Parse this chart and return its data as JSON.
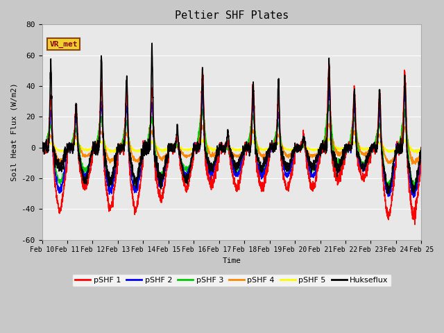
{
  "title": "Peltier SHF Plates",
  "xlabel": "Time",
  "ylabel": "Soil Heat Flux (W/m2)",
  "ylim": [
    -60,
    80
  ],
  "xlim": [
    0,
    15
  ],
  "fig_bg_color": "#c8c8c8",
  "plot_bg_color": "#e8e8e8",
  "series": {
    "pSHF 1": {
      "color": "#ff0000",
      "lw": 1.2
    },
    "pSHF 2": {
      "color": "#0000ff",
      "lw": 1.2
    },
    "pSHF 3": {
      "color": "#00cc00",
      "lw": 1.2
    },
    "pSHF 4": {
      "color": "#ff8800",
      "lw": 1.2
    },
    "pSHF 5": {
      "color": "#ffff00",
      "lw": 1.2
    },
    "Hukseflux": {
      "color": "#000000",
      "lw": 1.2
    }
  },
  "xtick_labels": [
    "Feb 10",
    "Feb 11",
    "Feb 12",
    "Feb 13",
    "Feb 14",
    "Feb 15",
    "Feb 16",
    "Feb 17",
    "Feb 18",
    "Feb 19",
    "Feb 20",
    "Feb 21",
    "Feb 22",
    "Feb 23",
    "Feb 24",
    "Feb 25"
  ],
  "ytick_labels": [
    -60,
    -40,
    -20,
    0,
    20,
    40,
    60,
    80
  ],
  "annotation_text": "VR_met",
  "grid_color": "#ffffff",
  "font": "monospace",
  "day_peaks_shf1": [
    38,
    30,
    46,
    42,
    44,
    11,
    51,
    7,
    44,
    35,
    12,
    55,
    40,
    40,
    55,
    45
  ],
  "day_troughs_shf1": [
    -40,
    -26,
    -40,
    -40,
    -33,
    -26,
    -24,
    -26,
    -26,
    -26,
    -26,
    -20,
    -20,
    -44,
    -44,
    -46
  ],
  "day_peaks_blk": [
    55,
    30,
    60,
    47,
    65,
    14,
    50,
    10,
    43,
    44,
    8,
    55,
    38,
    39,
    46,
    45
  ],
  "day_troughs_blk": [
    -13,
    -22,
    -22,
    -22,
    -22,
    -22,
    -13,
    -13,
    -13,
    -13,
    -13,
    -13,
    -13,
    -28,
    -28,
    -30
  ]
}
